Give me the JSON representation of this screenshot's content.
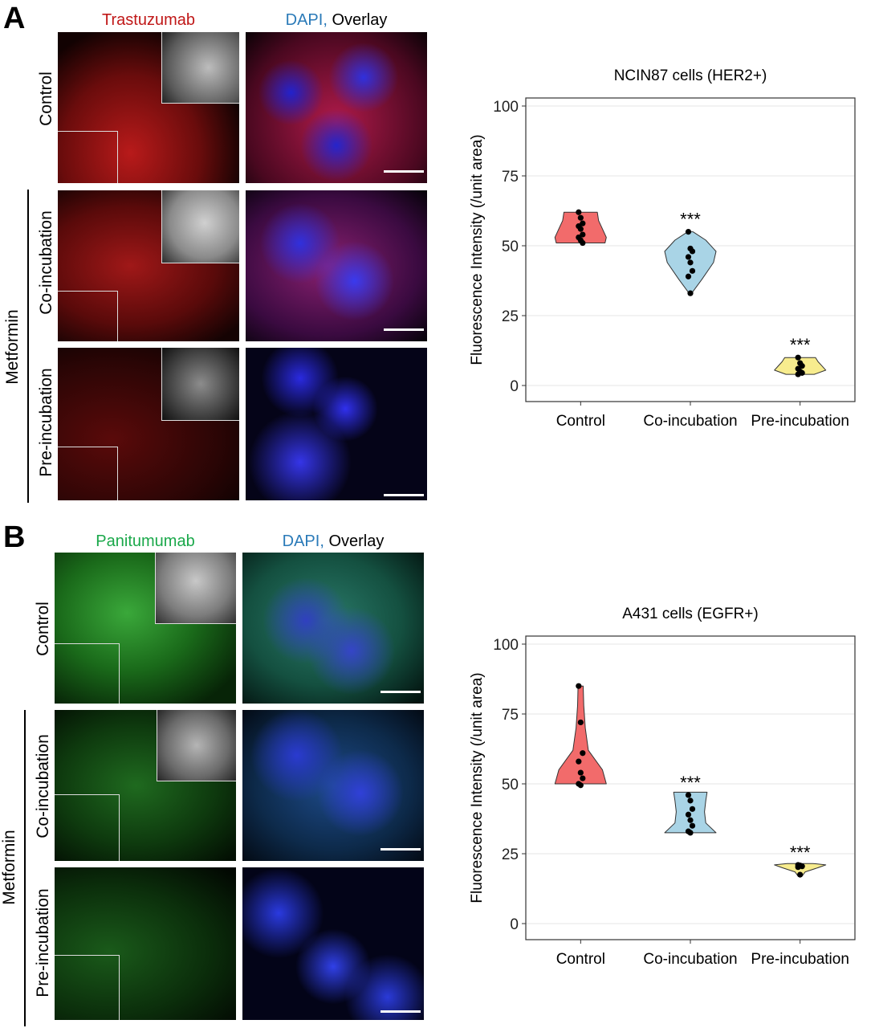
{
  "panels": [
    {
      "letter": "A",
      "col_headers": {
        "stain": "Trastuzumab",
        "stain_color": "#c01818",
        "dapi": "DAPI,",
        "dapi_color": "#2a7ab8",
        "overlay": "Overlay"
      },
      "row_labels": [
        "Control",
        "Co-incubation",
        "Pre-incubation"
      ],
      "group_label": "Metformin",
      "micro_color": "red"
    },
    {
      "letter": "B",
      "col_headers": {
        "stain": "Panitumumab",
        "stain_color": "#1aa84a",
        "dapi": "DAPI,",
        "dapi_color": "#2a7ab8",
        "overlay": "Overlay"
      },
      "row_labels": [
        "Control",
        "Co-incubation",
        "Pre-incubation"
      ],
      "group_label": "Metformin",
      "micro_color": "green"
    }
  ],
  "chart_data": [
    {
      "type": "violin",
      "title": "NCIN87 cells (HER2+)",
      "xlabel": "",
      "ylabel": "Fluorescence Intensity (/unit area)",
      "ylim": [
        0,
        100
      ],
      "yticks": [
        0,
        25,
        50,
        75,
        100
      ],
      "grid": true,
      "categories": [
        "Control",
        "Co-incubation",
        "Pre-incubation"
      ],
      "colors": [
        "#f26b6b",
        "#a9d4e6",
        "#f7ec8e"
      ],
      "significance": [
        "",
        "***",
        "***"
      ],
      "points": [
        [
          62,
          60,
          58,
          57,
          56,
          54,
          53,
          52,
          51
        ],
        [
          55,
          49,
          48,
          46,
          44,
          41,
          39,
          33
        ],
        [
          10,
          8,
          7,
          6,
          5,
          4.5,
          4
        ]
      ],
      "violin_profiles": [
        [
          [
            51,
            0.95
          ],
          [
            53,
            1.0
          ],
          [
            56,
            0.85
          ],
          [
            59,
            0.7
          ],
          [
            62,
            0.65
          ]
        ],
        [
          [
            33,
            0.05
          ],
          [
            38,
            0.45
          ],
          [
            44,
            0.9
          ],
          [
            48,
            1.0
          ],
          [
            52,
            0.6
          ],
          [
            55,
            0.1
          ]
        ],
        [
          [
            4,
            0.55
          ],
          [
            5.5,
            1.0
          ],
          [
            7,
            0.85
          ],
          [
            8.5,
            0.7
          ],
          [
            10,
            0.6
          ]
        ]
      ]
    },
    {
      "type": "violin",
      "title": "A431 cells (EGFR+)",
      "xlabel": "",
      "ylabel": "Fluorescence Intensity (/unit area)",
      "ylim": [
        0,
        100
      ],
      "yticks": [
        0,
        25,
        50,
        75,
        100
      ],
      "grid": true,
      "categories": [
        "Control",
        "Co-incubation",
        "Pre-incubation"
      ],
      "colors": [
        "#f26b6b",
        "#a9d4e6",
        "#f7ec8e"
      ],
      "significance": [
        "",
        "***",
        "***"
      ],
      "points": [
        [
          85,
          72,
          61,
          58,
          54,
          52,
          50,
          49.5
        ],
        [
          46,
          44,
          41,
          39,
          37,
          35,
          33,
          32.5
        ],
        [
          21,
          20.8,
          20.5,
          20.2,
          17.5
        ]
      ],
      "violin_profiles": [
        [
          [
            50,
            1.0
          ],
          [
            55,
            0.85
          ],
          [
            62,
            0.3
          ],
          [
            70,
            0.18
          ],
          [
            78,
            0.12
          ],
          [
            85,
            0.1
          ]
        ],
        [
          [
            32.5,
            1.0
          ],
          [
            36,
            0.6
          ],
          [
            40,
            0.55
          ],
          [
            44,
            0.6
          ],
          [
            47,
            0.65
          ]
        ],
        [
          [
            17,
            0.08
          ],
          [
            18.5,
            0.2
          ],
          [
            20,
            0.7
          ],
          [
            21,
            1.0
          ],
          [
            21.5,
            0.5
          ]
        ]
      ]
    }
  ]
}
